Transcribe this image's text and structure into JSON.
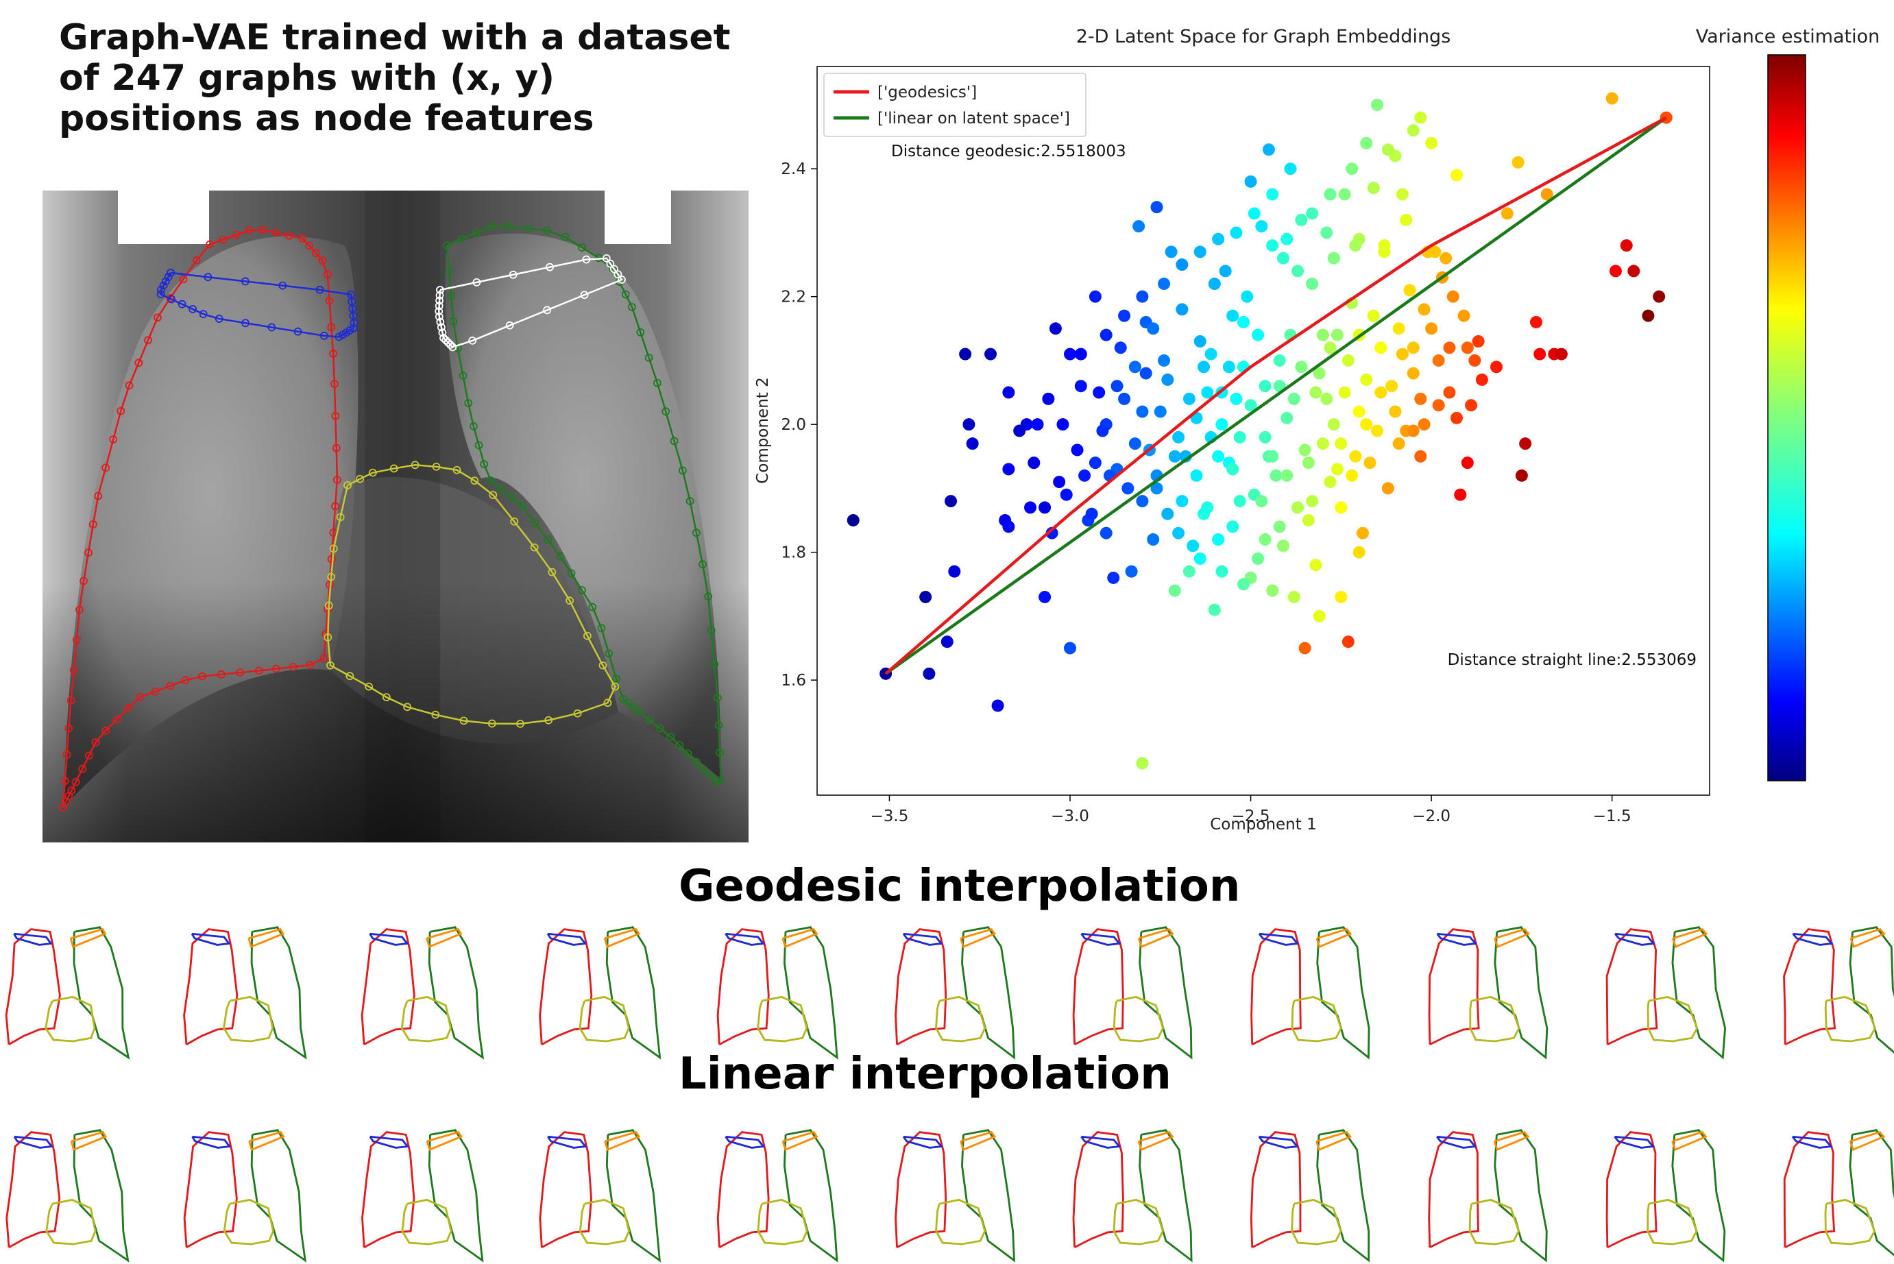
{
  "figure_title": "Graph-VAE trained with a dataset of 247 graphs with (x, y) positions as node features",
  "row_labels": {
    "geodesic": "Geodesic interpolation",
    "linear": "Linear interpolation"
  },
  "thumbnail_count": 11,
  "outline_colors": {
    "right_lung": "#e31a1c",
    "left_lung": "#1f7a1f",
    "heart": "#b5b81c",
    "right_clavicle": "#1f2bd6",
    "left_clavicle": "#ff8c00",
    "xray_left_clavicle": "#ffffff",
    "xray_heart": "#c8c832"
  },
  "chart_data": {
    "type": "scatter",
    "title": "2-D Latent Space for Graph Embeddings",
    "xlabel": "Component 1",
    "ylabel": "Component 2",
    "xlim": [
      -3.7,
      -1.23
    ],
    "ylim": [
      1.42,
      2.56
    ],
    "xticks": [
      -3.5,
      -3.0,
      -2.5,
      -2.0,
      -1.5
    ],
    "yticks": [
      1.6,
      1.8,
      2.0,
      2.2,
      2.4
    ],
    "colorbar_label": "Variance estimation",
    "colormap": "jet",
    "legend": {
      "position": "top-left",
      "entries": [
        {
          "label": "['geodesics']",
          "color": "#e41a1c"
        },
        {
          "label": "['linear on latent space']",
          "color": "#1a7a1a"
        }
      ]
    },
    "annotations": [
      "Distance geodesic:2.5518003",
      "Distance straight line:2.553069"
    ],
    "lines": [
      {
        "name": "['geodesics']",
        "color": "#e41a1c",
        "points": [
          [
            -3.51,
            1.61
          ],
          [
            -3.0,
            1.86
          ],
          [
            -2.5,
            2.09
          ],
          [
            -2.0,
            2.28
          ],
          [
            -1.35,
            2.48
          ]
        ]
      },
      {
        "name": "['linear on latent space']",
        "color": "#1a7a1a",
        "points": [
          [
            -3.51,
            1.61
          ],
          [
            -1.35,
            2.48
          ]
        ]
      }
    ],
    "points": [
      [
        -3.6,
        1.85,
        0.02
      ],
      [
        -3.51,
        1.61,
        0.03
      ],
      [
        -3.4,
        1.73,
        0.04
      ],
      [
        -3.34,
        1.66,
        0.08
      ],
      [
        -3.39,
        1.61,
        0.06
      ],
      [
        -3.32,
        1.77,
        0.09
      ],
      [
        -3.33,
        1.88,
        0.05
      ],
      [
        -3.29,
        2.11,
        0.05
      ],
      [
        -3.22,
        2.11,
        0.06
      ],
      [
        -3.28,
        2.0,
        0.07
      ],
      [
        -3.27,
        1.97,
        0.08
      ],
      [
        -3.2,
        1.56,
        0.1
      ],
      [
        -3.17,
        2.05,
        0.1
      ],
      [
        -3.17,
        1.93,
        0.12
      ],
      [
        -3.18,
        1.85,
        0.11
      ],
      [
        -3.17,
        1.84,
        0.13
      ],
      [
        -3.11,
        1.87,
        0.12
      ],
      [
        -3.12,
        2.0,
        0.1
      ],
      [
        -3.09,
        2.0,
        0.13
      ],
      [
        -3.07,
        1.73,
        0.14
      ],
      [
        -3.05,
        1.83,
        0.15
      ],
      [
        -3.04,
        2.15,
        0.08
      ],
      [
        -3.02,
        2.0,
        0.12
      ],
      [
        -3.0,
        1.65,
        0.2
      ],
      [
        -3.0,
        2.11,
        0.13
      ],
      [
        -2.97,
        2.11,
        0.12
      ],
      [
        -2.95,
        1.85,
        0.18
      ],
      [
        -2.93,
        2.2,
        0.15
      ],
      [
        -2.93,
        1.94,
        0.17
      ],
      [
        -2.9,
        1.83,
        0.2
      ],
      [
        -2.9,
        2.0,
        0.18
      ],
      [
        -2.88,
        1.76,
        0.17
      ],
      [
        -2.87,
        1.93,
        0.22
      ],
      [
        -2.85,
        2.04,
        0.2
      ],
      [
        -2.83,
        1.77,
        0.22
      ],
      [
        -2.82,
        2.09,
        0.23
      ],
      [
        -2.81,
        2.31,
        0.25
      ],
      [
        -2.8,
        1.88,
        0.22
      ],
      [
        -2.79,
        2.16,
        0.22
      ],
      [
        -2.78,
        1.96,
        0.27
      ],
      [
        -2.77,
        2.15,
        0.24
      ],
      [
        -2.76,
        2.34,
        0.2
      ],
      [
        -2.75,
        2.02,
        0.25
      ],
      [
        -2.73,
        1.86,
        0.3
      ],
      [
        -2.72,
        2.27,
        0.28
      ],
      [
        -2.71,
        1.74,
        0.48
      ],
      [
        -2.7,
        1.98,
        0.32
      ],
      [
        -2.69,
        2.18,
        0.28
      ],
      [
        -2.67,
        1.77,
        0.45
      ],
      [
        -2.65,
        2.01,
        0.33
      ],
      [
        -2.63,
        2.09,
        0.32
      ],
      [
        -2.62,
        1.87,
        0.4
      ],
      [
        -2.6,
        2.22,
        0.3
      ],
      [
        -2.6,
        1.71,
        0.45
      ],
      [
        -2.58,
        2.05,
        0.36
      ],
      [
        -2.56,
        1.94,
        0.38
      ],
      [
        -2.55,
        2.17,
        0.34
      ],
      [
        -2.55,
        1.84,
        0.4
      ],
      [
        -2.53,
        1.98,
        0.42
      ],
      [
        -2.52,
        2.09,
        0.39
      ],
      [
        -2.51,
        2.2,
        0.35
      ],
      [
        -2.5,
        2.38,
        0.3
      ],
      [
        -2.49,
        1.89,
        0.44
      ],
      [
        -2.48,
        1.79,
        0.48
      ],
      [
        -2.47,
        2.31,
        0.35
      ],
      [
        -2.46,
        2.06,
        0.43
      ],
      [
        -2.45,
        1.95,
        0.45
      ],
      [
        -2.44,
        1.74,
        0.52
      ],
      [
        -2.42,
        1.84,
        0.5
      ],
      [
        -2.41,
        2.26,
        0.42
      ],
      [
        -2.4,
        2.01,
        0.46
      ],
      [
        -2.39,
        2.4,
        0.35
      ],
      [
        -2.37,
        1.87,
        0.55
      ],
      [
        -2.36,
        2.32,
        0.44
      ],
      [
        -2.35,
        1.65,
        0.78
      ],
      [
        -2.34,
        1.94,
        0.52
      ],
      [
        -2.33,
        2.22,
        0.48
      ],
      [
        -2.32,
        1.78,
        0.6
      ],
      [
        -2.31,
        2.08,
        0.52
      ],
      [
        -2.29,
        2.3,
        0.47
      ],
      [
        -2.28,
        1.91,
        0.58
      ],
      [
        -2.27,
        2.0,
        0.56
      ],
      [
        -2.26,
        2.14,
        0.52
      ],
      [
        -2.25,
        1.87,
        0.62
      ],
      [
        -2.24,
        2.36,
        0.5
      ],
      [
        -2.23,
        1.66,
        0.82
      ],
      [
        -2.22,
        2.19,
        0.55
      ],
      [
        -2.21,
        1.95,
        0.65
      ],
      [
        -2.2,
        2.29,
        0.55
      ],
      [
        -2.19,
        1.83,
        0.7
      ],
      [
        -2.18,
        2.07,
        0.6
      ],
      [
        -2.16,
        2.37,
        0.55
      ],
      [
        -2.15,
        1.99,
        0.65
      ],
      [
        -2.14,
        2.12,
        0.62
      ],
      [
        -2.13,
        2.28,
        0.6
      ],
      [
        -2.12,
        2.43,
        0.55
      ],
      [
        -2.1,
        2.02,
        0.68
      ],
      [
        -2.09,
        2.15,
        0.65
      ],
      [
        -2.08,
        2.36,
        0.58
      ],
      [
        -2.07,
        1.99,
        0.72
      ],
      [
        -2.06,
        2.21,
        0.66
      ],
      [
        -2.05,
        2.12,
        0.68
      ],
      [
        -2.03,
        1.95,
        0.78
      ],
      [
        -2.02,
        2.18,
        0.7
      ],
      [
        -2.0,
        2.44,
        0.6
      ],
      [
        -1.99,
        2.27,
        0.68
      ],
      [
        -1.97,
        2.23,
        0.72
      ],
      [
        -1.95,
        2.05,
        0.8
      ],
      [
        -1.93,
        2.39,
        0.62
      ],
      [
        -1.92,
        1.89,
        0.88
      ],
      [
        -1.91,
        2.17,
        0.72
      ],
      [
        -1.9,
        2.12,
        0.78
      ],
      [
        -1.89,
        2.03,
        0.82
      ],
      [
        -1.88,
        2.1,
        0.8
      ],
      [
        -1.86,
        2.07,
        0.84
      ],
      [
        -1.82,
        2.09,
        0.85
      ],
      [
        -1.79,
        2.33,
        0.7
      ],
      [
        -1.76,
        2.41,
        0.68
      ],
      [
        -1.75,
        1.92,
        0.96
      ],
      [
        -1.74,
        1.97,
        0.94
      ],
      [
        -1.71,
        2.16,
        0.86
      ],
      [
        -1.7,
        2.11,
        0.88
      ],
      [
        -1.68,
        2.36,
        0.72
      ],
      [
        -1.66,
        2.11,
        0.9
      ],
      [
        -1.64,
        2.11,
        0.92
      ],
      [
        -1.5,
        2.51,
        0.7
      ],
      [
        -1.49,
        2.24,
        0.88
      ],
      [
        -1.46,
        2.28,
        0.9
      ],
      [
        -1.44,
        2.24,
        0.93
      ],
      [
        -1.4,
        2.17,
        1.0
      ],
      [
        -1.37,
        2.2,
        0.98
      ],
      [
        -1.35,
        2.48,
        0.8
      ],
      [
        -3.07,
        1.87,
        0.1
      ],
      [
        -3.03,
        1.91,
        0.11
      ],
      [
        -2.98,
        1.96,
        0.13
      ],
      [
        -2.96,
        1.92,
        0.15
      ],
      [
        -2.92,
        2.05,
        0.14
      ],
      [
        -2.86,
        2.12,
        0.18
      ],
      [
        -2.84,
        1.9,
        0.2
      ],
      [
        -2.79,
        2.08,
        0.2
      ],
      [
        -2.77,
        1.82,
        0.24
      ],
      [
        -2.74,
        2.1,
        0.25
      ],
      [
        -2.68,
        1.95,
        0.3
      ],
      [
        -2.66,
        1.81,
        0.34
      ],
      [
        -2.64,
        2.13,
        0.3
      ],
      [
        -2.61,
        1.98,
        0.34
      ],
      [
        -2.59,
        1.82,
        0.38
      ],
      [
        -2.57,
        2.24,
        0.3
      ],
      [
        -2.56,
        2.09,
        0.34
      ],
      [
        -2.54,
        2.04,
        0.38
      ],
      [
        -2.53,
        1.88,
        0.42
      ],
      [
        -2.5,
        1.76,
        0.5
      ],
      [
        -2.48,
        2.14,
        0.38
      ],
      [
        -2.46,
        1.98,
        0.44
      ],
      [
        -2.44,
        2.28,
        0.4
      ],
      [
        -2.43,
        1.92,
        0.48
      ],
      [
        -2.42,
        2.1,
        0.44
      ],
      [
        -2.41,
        1.81,
        0.52
      ],
      [
        -2.38,
        2.04,
        0.48
      ],
      [
        -2.37,
        2.24,
        0.45
      ],
      [
        -2.35,
        1.96,
        0.52
      ],
      [
        -2.33,
        1.88,
        0.56
      ],
      [
        -2.3,
        2.14,
        0.52
      ],
      [
        -2.29,
        2.04,
        0.54
      ],
      [
        -2.27,
        2.26,
        0.5
      ],
      [
        -2.25,
        1.97,
        0.6
      ],
      [
        -2.23,
        2.1,
        0.58
      ],
      [
        -2.21,
        2.28,
        0.54
      ],
      [
        -2.2,
        2.02,
        0.62
      ],
      [
        -2.17,
        1.94,
        0.68
      ],
      [
        -2.16,
        2.17,
        0.6
      ],
      [
        -2.13,
        2.27,
        0.6
      ],
      [
        -2.11,
        2.06,
        0.66
      ],
      [
        -2.09,
        1.97,
        0.7
      ],
      [
        -2.07,
        2.32,
        0.6
      ],
      [
        -2.05,
        2.08,
        0.7
      ],
      [
        -2.02,
        2.0,
        0.75
      ],
      [
        -2.0,
        2.15,
        0.72
      ],
      [
        -1.98,
        2.1,
        0.76
      ],
      [
        -1.96,
        2.26,
        0.7
      ],
      [
        -1.94,
        2.2,
        0.74
      ],
      [
        -1.93,
        2.01,
        0.82
      ],
      [
        -2.62,
        2.05,
        0.35
      ],
      [
        -2.58,
        2.0,
        0.38
      ],
      [
        -2.55,
        1.93,
        0.42
      ],
      [
        -2.52,
        2.16,
        0.38
      ],
      [
        -2.5,
        2.03,
        0.43
      ],
      [
        -2.47,
        1.88,
        0.48
      ],
      [
        -2.44,
        1.95,
        0.47
      ],
      [
        -2.42,
        2.06,
        0.46
      ],
      [
        -2.4,
        1.92,
        0.5
      ],
      [
        -2.39,
        2.14,
        0.46
      ],
      [
        -2.36,
        2.09,
        0.5
      ],
      [
        -2.34,
        1.85,
        0.58
      ],
      [
        -2.32,
        2.05,
        0.54
      ],
      [
        -2.3,
        1.97,
        0.57
      ],
      [
        -2.28,
        2.12,
        0.55
      ],
      [
        -2.26,
        1.93,
        0.6
      ],
      [
        -2.24,
        2.05,
        0.6
      ],
      [
        -2.22,
        1.92,
        0.64
      ],
      [
        -2.2,
        2.14,
        0.6
      ],
      [
        -2.18,
        2.0,
        0.64
      ],
      [
        -2.14,
        2.05,
        0.66
      ],
      [
        -2.12,
        1.9,
        0.72
      ],
      [
        -2.08,
        2.11,
        0.68
      ],
      [
        -2.05,
        1.99,
        0.74
      ],
      [
        -2.03,
        2.04,
        0.76
      ],
      [
        -2.01,
        2.27,
        0.68
      ],
      [
        -1.98,
        2.03,
        0.78
      ],
      [
        -1.95,
        2.12,
        0.78
      ],
      [
        -1.9,
        1.94,
        0.88
      ],
      [
        -1.87,
        2.13,
        0.82
      ],
      [
        -3.14,
        1.99,
        0.08
      ],
      [
        -3.1,
        1.94,
        0.1
      ],
      [
        -3.06,
        2.04,
        0.1
      ],
      [
        -3.01,
        1.89,
        0.14
      ],
      [
        -2.97,
        2.06,
        0.14
      ],
      [
        -2.94,
        1.86,
        0.17
      ],
      [
        -2.91,
        1.99,
        0.17
      ],
      [
        -2.89,
        1.92,
        0.2
      ],
      [
        -2.87,
        2.06,
        0.19
      ],
      [
        -2.82,
        1.97,
        0.22
      ],
      [
        -2.8,
        2.02,
        0.23
      ],
      [
        -2.76,
        1.92,
        0.26
      ],
      [
        -2.73,
        2.07,
        0.27
      ],
      [
        -2.71,
        1.95,
        0.3
      ],
      [
        -2.69,
        1.88,
        0.34
      ],
      [
        -2.67,
        2.04,
        0.32
      ],
      [
        -2.65,
        1.92,
        0.36
      ],
      [
        -2.63,
        1.86,
        0.4
      ],
      [
        -2.61,
        2.11,
        0.34
      ],
      [
        -2.59,
        1.95,
        0.38
      ],
      [
        -2.45,
        2.43,
        0.3
      ],
      [
        -2.4,
        2.29,
        0.4
      ],
      [
        -2.33,
        2.33,
        0.44
      ],
      [
        -2.28,
        2.36,
        0.48
      ],
      [
        -2.22,
        2.4,
        0.5
      ],
      [
        -2.18,
        2.44,
        0.5
      ],
      [
        -2.15,
        2.5,
        0.5
      ],
      [
        -2.1,
        2.42,
        0.56
      ],
      [
        -2.05,
        2.46,
        0.56
      ],
      [
        -2.03,
        2.48,
        0.58
      ],
      [
        -2.76,
        1.9,
        0.26
      ],
      [
        -2.7,
        1.83,
        0.32
      ],
      [
        -2.64,
        1.79,
        0.38
      ],
      [
        -2.58,
        1.77,
        0.42
      ],
      [
        -2.52,
        1.75,
        0.46
      ],
      [
        -2.46,
        1.82,
        0.5
      ],
      [
        -2.38,
        1.73,
        0.56
      ],
      [
        -2.31,
        1.7,
        0.6
      ],
      [
        -2.25,
        1.73,
        0.64
      ],
      [
        -2.2,
        1.8,
        0.66
      ],
      [
        -2.9,
        2.14,
        0.16
      ],
      [
        -2.85,
        2.17,
        0.18
      ],
      [
        -2.8,
        2.2,
        0.2
      ],
      [
        -2.74,
        2.22,
        0.24
      ],
      [
        -2.69,
        2.25,
        0.27
      ],
      [
        -2.64,
        2.27,
        0.3
      ],
      [
        -2.59,
        2.29,
        0.32
      ],
      [
        -2.54,
        2.3,
        0.35
      ],
      [
        -2.49,
        2.33,
        0.37
      ],
      [
        -2.44,
        2.36,
        0.39
      ],
      [
        -2.8,
        1.47,
        0.55
      ]
    ]
  }
}
